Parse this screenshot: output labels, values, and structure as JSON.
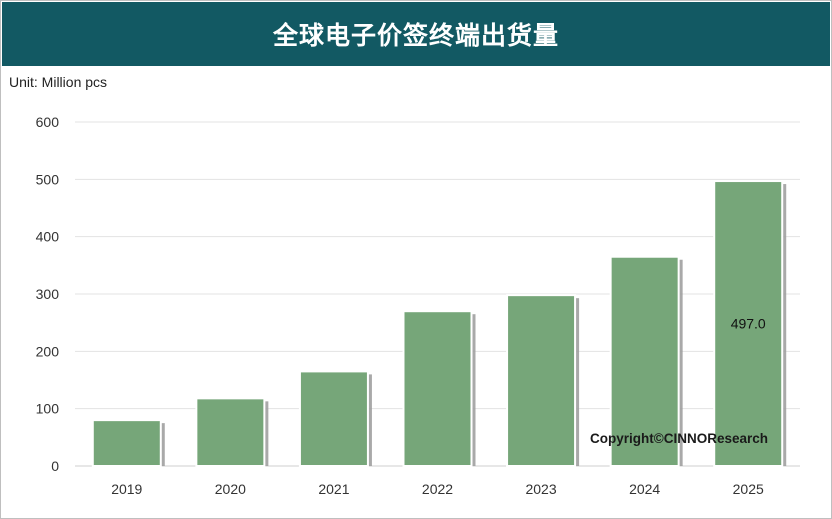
{
  "title": "全球电子价签终端出货量",
  "unit_label": "Unit: Million pcs",
  "copyright": "Copyright©CINNOResearch",
  "colors": {
    "title_bg": "#125963",
    "bar": "#76a679",
    "bar_border": "#ffffff",
    "shadow": "#9a9a9a",
    "grid": "#e3e3e3"
  },
  "chart_data": {
    "type": "bar",
    "categories": [
      "2019",
      "2020",
      "2021",
      "2022",
      "2023",
      "2024",
      "2025"
    ],
    "values": [
      80,
      118,
      165,
      270,
      298,
      365,
      497.0
    ],
    "data_labels": [
      {
        "index": 6,
        "text": "497.0"
      }
    ],
    "yticks": [
      0,
      100,
      200,
      300,
      400,
      500,
      600
    ],
    "ylim": [
      0,
      600
    ],
    "title": "全球电子价签终端出货量",
    "ylabel": "Unit: Million pcs",
    "xlabel": "",
    "grid": true,
    "legend": "none"
  }
}
